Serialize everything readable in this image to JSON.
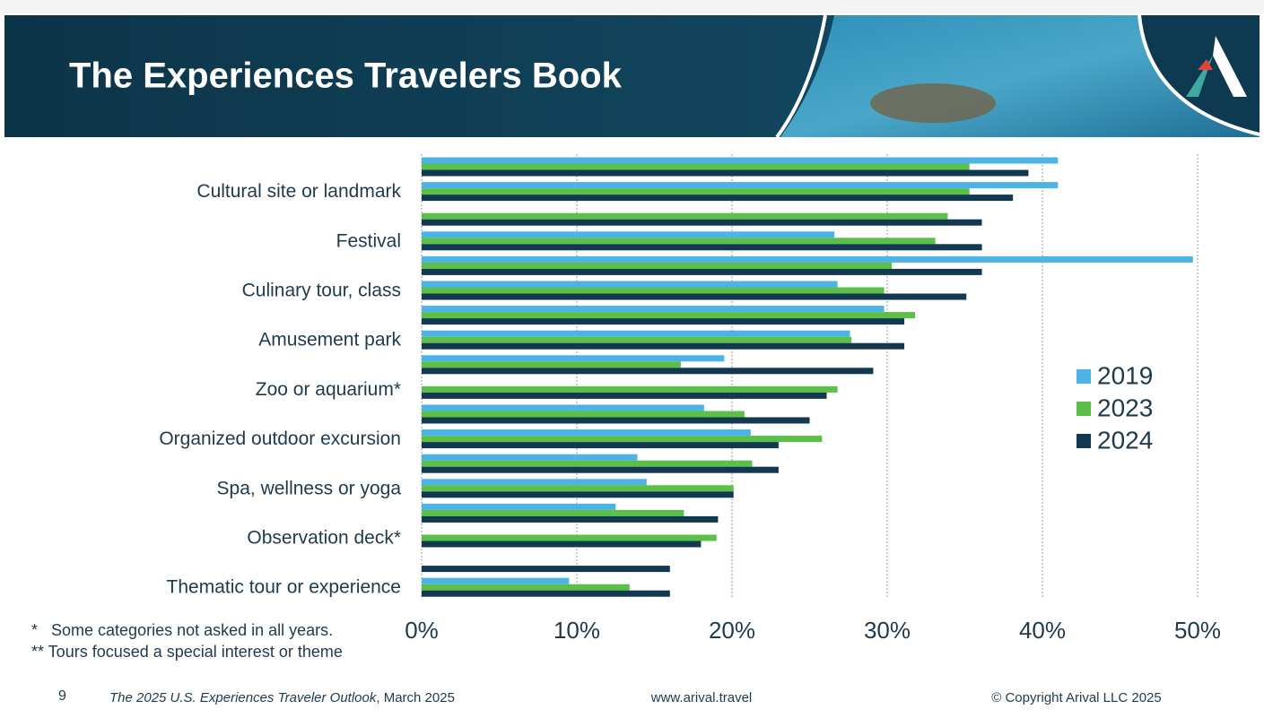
{
  "chart_data": {
    "type": "hbar",
    "title": "The Experiences Travelers Book",
    "categories": [
      null,
      "Cultural site or landmark",
      null,
      "Festival",
      null,
      "Culinary tour, class",
      null,
      "Amusement park",
      null,
      "Zoo or aquarium*",
      null,
      "Organized outdoor excursion",
      null,
      "Spa, wellness or yoga",
      null,
      "Observation deck*",
      null,
      "Thematic tour or experience"
    ],
    "series": [
      {
        "name": "2019",
        "color": "#4bb3e6",
        "values": [
          41.0,
          41.0,
          null,
          26.6,
          49.7,
          26.8,
          29.8,
          27.6,
          19.5,
          null,
          18.2,
          21.2,
          13.9,
          14.5,
          12.5,
          null,
          null,
          9.5
        ]
      },
      {
        "name": "2023",
        "color": "#5cbf4a",
        "values": [
          35.3,
          35.3,
          33.9,
          33.1,
          30.3,
          29.8,
          31.8,
          27.7,
          16.7,
          26.8,
          20.8,
          25.8,
          21.3,
          20.1,
          16.9,
          19.0,
          null,
          13.4
        ]
      },
      {
        "name": "2024",
        "color": "#12394f",
        "values": [
          39.1,
          38.1,
          36.1,
          36.1,
          36.1,
          35.1,
          31.1,
          31.1,
          29.1,
          26.1,
          25.0,
          23.0,
          23.0,
          20.1,
          19.1,
          18.0,
          16.0,
          16.0
        ]
      }
    ],
    "xlim": [
      0,
      50
    ],
    "xticks": [
      {
        "value": 0,
        "label": "0%"
      },
      {
        "value": 10,
        "label": "10%"
      },
      {
        "value": 20,
        "label": "20%"
      },
      {
        "value": 30,
        "label": "30%"
      },
      {
        "value": 40,
        "label": "40%"
      },
      {
        "value": 50,
        "label": "50%"
      }
    ],
    "grid": true,
    "legend": "right",
    "notes": [
      "*   Some categories not asked in all years.",
      "** Tours focused a special interest or theme"
    ]
  },
  "footer": {
    "page": "9",
    "publication": "The 2025 U.S. Experiences Traveler Outlook",
    "date": ", March 2025",
    "website": "www.arival.travel",
    "copyright": "© Copyright Arival LLC 2025"
  }
}
